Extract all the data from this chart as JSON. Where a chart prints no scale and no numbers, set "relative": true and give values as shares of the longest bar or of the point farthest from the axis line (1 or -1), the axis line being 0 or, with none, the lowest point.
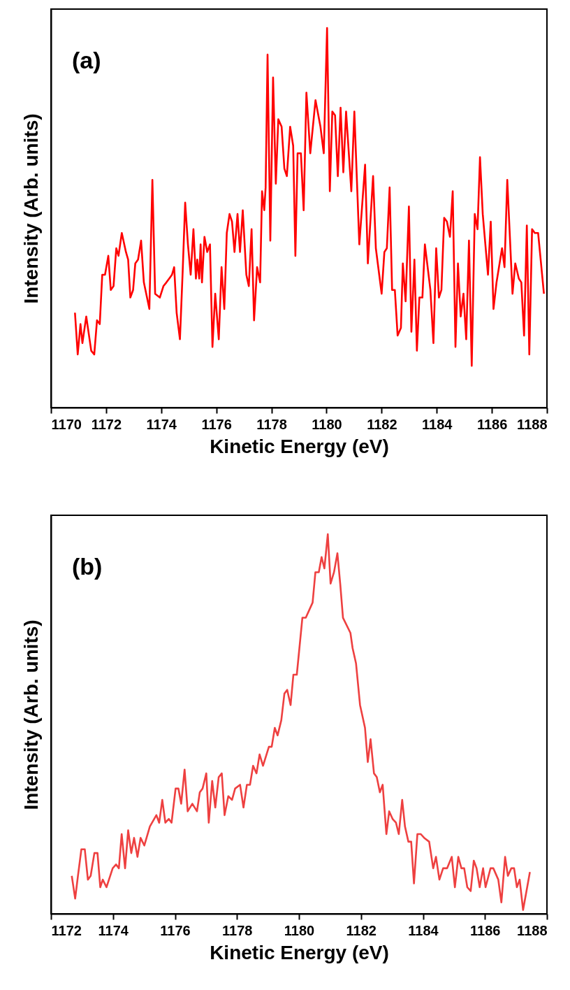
{
  "chart_data": [
    {
      "type": "line",
      "relative": true,
      "xlabel": "Kinetic Energy (eV)",
      "ylabel": "Intensity (Arb. units)",
      "annotations": [
        "(a)"
      ],
      "xlim": [
        1170,
        1188
      ],
      "xticks": [
        1170,
        1172,
        1174,
        1176,
        1178,
        1180,
        1182,
        1184,
        1186,
        1188
      ],
      "tick_labels": "x",
      "grid": false,
      "line_style": "solid",
      "marker": "none",
      "series": [
        {
          "color": "#ff0000",
          "x": [
            1170.87,
            1170.97,
            1171.07,
            1171.14,
            1171.18,
            1171.28,
            1171.46,
            1171.57,
            1171.67,
            1171.77,
            1171.86,
            1171.96,
            1172.08,
            1172.17,
            1172.27,
            1172.37,
            1172.45,
            1172.57,
            1172.72,
            1172.8,
            1172.88,
            1172.98,
            1173.06,
            1173.16,
            1173.27,
            1173.37,
            1173.57,
            1173.68,
            1173.78,
            1173.95,
            1174.08,
            1174.19,
            1174.29,
            1174.39,
            1174.47,
            1174.56,
            1174.68,
            1174.78,
            1174.87,
            1174.97,
            1175.07,
            1175.17,
            1175.26,
            1175.31,
            1175.38,
            1175.43,
            1175.48,
            1175.57,
            1175.67,
            1175.77,
            1175.86,
            1175.96,
            1176.09,
            1176.19,
            1176.29,
            1176.38,
            1176.48,
            1176.57,
            1176.66,
            1176.77,
            1176.86,
            1176.96,
            1177.09,
            1177.18,
            1177.28,
            1177.37,
            1177.48,
            1177.59,
            1177.66,
            1177.74,
            1177.79,
            1177.86,
            1177.96,
            1178.06,
            1178.16,
            1178.25,
            1178.37,
            1178.47,
            1178.56,
            1178.68,
            1178.79,
            1178.87,
            1178.95,
            1179.07,
            1179.17,
            1179.27,
            1179.41,
            1179.6,
            1179.78,
            1179.9,
            1180.02,
            1180.12,
            1180.21,
            1180.31,
            1180.41,
            1180.51,
            1180.61,
            1180.71,
            1180.9,
            1181.01,
            1181.19,
            1181.4,
            1181.5,
            1181.69,
            1181.79,
            1182.0,
            1182.1,
            1182.19,
            1182.29,
            1182.38,
            1182.48,
            1182.58,
            1182.7,
            1182.77,
            1182.87,
            1182.99,
            1183.08,
            1183.19,
            1183.28,
            1183.37,
            1183.48,
            1183.57,
            1183.77,
            1183.88,
            1183.98,
            1184.08,
            1184.17,
            1184.27,
            1184.37,
            1184.48,
            1184.58,
            1184.68,
            1184.77,
            1184.87,
            1184.97,
            1185.07,
            1185.17,
            1185.27,
            1185.38,
            1185.48,
            1185.57,
            1185.67,
            1185.86,
            1185.96,
            1186.06,
            1186.17,
            1186.37,
            1186.46,
            1186.56,
            1186.75,
            1186.85,
            1186.98,
            1187.07,
            1187.17,
            1187.27,
            1187.36,
            1187.46,
            1187.56,
            1187.68,
            1187.89
          ],
          "values": [
            0.25,
            0.14,
            0.22,
            0.17,
            0.19,
            0.24,
            0.15,
            0.14,
            0.23,
            0.22,
            0.35,
            0.35,
            0.4,
            0.31,
            0.32,
            0.42,
            0.4,
            0.46,
            0.41,
            0.39,
            0.29,
            0.31,
            0.38,
            0.39,
            0.44,
            0.33,
            0.26,
            0.6,
            0.3,
            0.29,
            0.32,
            0.33,
            0.34,
            0.35,
            0.37,
            0.25,
            0.18,
            0.36,
            0.54,
            0.43,
            0.35,
            0.47,
            0.34,
            0.39,
            0.34,
            0.43,
            0.33,
            0.45,
            0.41,
            0.43,
            0.16,
            0.3,
            0.18,
            0.37,
            0.26,
            0.46,
            0.51,
            0.49,
            0.41,
            0.51,
            0.41,
            0.52,
            0.35,
            0.32,
            0.47,
            0.23,
            0.37,
            0.33,
            0.57,
            0.52,
            0.58,
            0.93,
            0.44,
            0.87,
            0.59,
            0.76,
            0.74,
            0.63,
            0.61,
            0.74,
            0.69,
            0.4,
            0.67,
            0.67,
            0.52,
            0.83,
            0.67,
            0.81,
            0.74,
            0.67,
            1.0,
            0.57,
            0.78,
            0.77,
            0.61,
            0.79,
            0.62,
            0.78,
            0.57,
            0.78,
            0.43,
            0.64,
            0.38,
            0.61,
            0.42,
            0.3,
            0.41,
            0.42,
            0.58,
            0.31,
            0.31,
            0.19,
            0.21,
            0.38,
            0.28,
            0.53,
            0.2,
            0.39,
            0.15,
            0.29,
            0.29,
            0.43,
            0.31,
            0.17,
            0.42,
            0.29,
            0.31,
            0.5,
            0.49,
            0.45,
            0.57,
            0.16,
            0.38,
            0.24,
            0.3,
            0.18,
            0.44,
            0.11,
            0.51,
            0.47,
            0.66,
            0.51,
            0.35,
            0.49,
            0.26,
            0.33,
            0.42,
            0.37,
            0.6,
            0.3,
            0.38,
            0.34,
            0.33,
            0.19,
            0.48,
            0.14,
            0.47,
            0.46,
            0.46,
            0.3
          ]
        }
      ]
    },
    {
      "type": "line",
      "relative": true,
      "xlabel": "Kinetic Energy (eV)",
      "ylabel": "Intensity (Arb. units)",
      "annotations": [
        "(b)"
      ],
      "xlim": [
        1172,
        1188
      ],
      "xticks": [
        1172,
        1174,
        1176,
        1178,
        1180,
        1182,
        1184,
        1186,
        1188
      ],
      "tick_labels": "x",
      "grid": false,
      "line_style": "solid",
      "marker": "none",
      "series": [
        {
          "color": "#ee4040",
          "x": [
            1172.67,
            1172.78,
            1172.87,
            1172.98,
            1173.09,
            1173.19,
            1173.28,
            1173.4,
            1173.5,
            1173.59,
            1173.67,
            1173.79,
            1173.99,
            1174.1,
            1174.19,
            1174.28,
            1174.39,
            1174.49,
            1174.59,
            1174.68,
            1174.79,
            1174.89,
            1175.01,
            1175.19,
            1175.4,
            1175.49,
            1175.59,
            1175.69,
            1175.8,
            1175.89,
            1176.02,
            1176.11,
            1176.2,
            1176.31,
            1176.41,
            1176.56,
            1176.71,
            1176.8,
            1176.89,
            1177.01,
            1177.09,
            1177.2,
            1177.3,
            1177.41,
            1177.51,
            1177.6,
            1177.72,
            1177.84,
            1177.94,
            1178.1,
            1178.21,
            1178.32,
            1178.42,
            1178.52,
            1178.63,
            1178.73,
            1178.84,
            1179.03,
            1179.12,
            1179.22,
            1179.31,
            1179.43,
            1179.53,
            1179.62,
            1179.73,
            1179.82,
            1179.93,
            1180.11,
            1180.22,
            1180.44,
            1180.53,
            1180.64,
            1180.73,
            1180.82,
            1180.93,
            1181.02,
            1181.13,
            1181.24,
            1181.33,
            1181.42,
            1181.66,
            1181.73,
            1181.84,
            1181.97,
            1182.13,
            1182.22,
            1182.31,
            1182.42,
            1182.51,
            1182.61,
            1182.7,
            1182.82,
            1182.91,
            1183.02,
            1183.13,
            1183.22,
            1183.33,
            1183.42,
            1183.53,
            1183.62,
            1183.71,
            1183.82,
            1183.93,
            1184.04,
            1184.2,
            1184.33,
            1184.42,
            1184.53,
            1184.65,
            1184.78,
            1184.93,
            1185.03,
            1185.14,
            1185.24,
            1185.33,
            1185.43,
            1185.54,
            1185.64,
            1185.73,
            1185.83,
            1185.94,
            1186.02,
            1186.18,
            1186.27,
            1186.43,
            1186.53,
            1186.65,
            1186.74,
            1186.85,
            1186.94,
            1187.03,
            1187.12,
            1187.23,
            1187.45
          ],
          "values": [
            0.1,
            0.04,
            0.1,
            0.17,
            0.17,
            0.09,
            0.1,
            0.16,
            0.16,
            0.07,
            0.09,
            0.07,
            0.12,
            0.13,
            0.12,
            0.21,
            0.12,
            0.22,
            0.16,
            0.2,
            0.15,
            0.2,
            0.18,
            0.23,
            0.26,
            0.24,
            0.3,
            0.24,
            0.25,
            0.24,
            0.33,
            0.33,
            0.29,
            0.38,
            0.27,
            0.29,
            0.27,
            0.32,
            0.33,
            0.37,
            0.24,
            0.35,
            0.28,
            0.36,
            0.37,
            0.26,
            0.31,
            0.3,
            0.33,
            0.34,
            0.28,
            0.34,
            0.34,
            0.39,
            0.37,
            0.42,
            0.39,
            0.44,
            0.44,
            0.49,
            0.47,
            0.51,
            0.58,
            0.59,
            0.55,
            0.63,
            0.63,
            0.78,
            0.78,
            0.82,
            0.9,
            0.9,
            0.94,
            0.91,
            1.0,
            0.87,
            0.9,
            0.95,
            0.87,
            0.78,
            0.74,
            0.7,
            0.66,
            0.55,
            0.49,
            0.4,
            0.46,
            0.37,
            0.36,
            0.32,
            0.34,
            0.21,
            0.27,
            0.25,
            0.24,
            0.21,
            0.3,
            0.23,
            0.19,
            0.19,
            0.08,
            0.21,
            0.21,
            0.2,
            0.19,
            0.12,
            0.15,
            0.09,
            0.12,
            0.12,
            0.15,
            0.07,
            0.15,
            0.12,
            0.12,
            0.07,
            0.06,
            0.14,
            0.12,
            0.07,
            0.12,
            0.07,
            0.12,
            0.12,
            0.09,
            0.03,
            0.15,
            0.1,
            0.12,
            0.12,
            0.07,
            0.09,
            0.01,
            0.11
          ]
        }
      ]
    }
  ]
}
